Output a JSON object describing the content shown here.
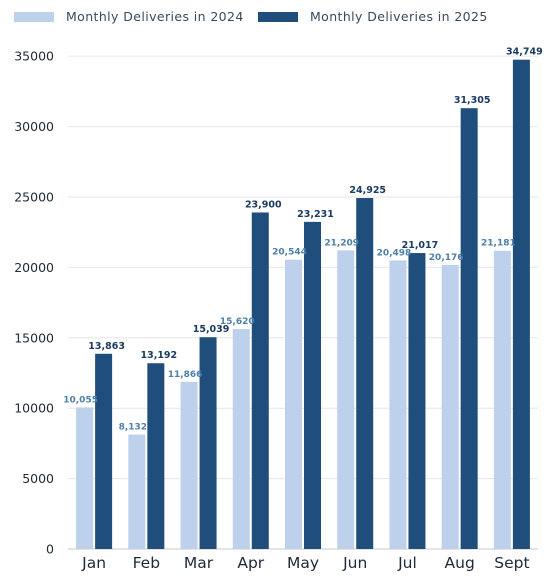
{
  "chart_data": {
    "type": "bar",
    "title": "",
    "xlabel": "",
    "ylabel": "",
    "categories": [
      "Jan",
      "Feb",
      "Mar",
      "Apr",
      "May",
      "Jun",
      "Jul",
      "Aug",
      "Sept"
    ],
    "series": [
      {
        "name": "Monthly Deliveries in 2024",
        "color": "#bdd1ec",
        "values": [
          10055,
          8132,
          11866,
          15620,
          20544,
          21209,
          20498,
          20176,
          21181
        ],
        "labels": [
          "10,055",
          "8,132",
          "11,866",
          "15,620",
          "20,544",
          "21,209",
          "20,498",
          "20,176",
          "21,181"
        ]
      },
      {
        "name": "Monthly Deliveries in 2025",
        "color": "#1f4e7c",
        "values": [
          13863,
          13192,
          15039,
          23900,
          23231,
          24925,
          21017,
          31305,
          34749
        ],
        "labels": [
          "13,863",
          "13,192",
          "15,039",
          "23,900",
          "23,231",
          "24,925",
          "21,017",
          "31,305",
          "34,749"
        ]
      }
    ],
    "ylim": [
      0,
      37000
    ],
    "yticks": [
      0,
      5000,
      10000,
      15000,
      20000,
      25000,
      30000,
      35000
    ],
    "ytick_labels": [
      "0",
      "5000",
      "10000",
      "15000",
      "20000",
      "25000",
      "30000",
      "35000"
    ],
    "grid": true,
    "legend_position": "top-left"
  }
}
